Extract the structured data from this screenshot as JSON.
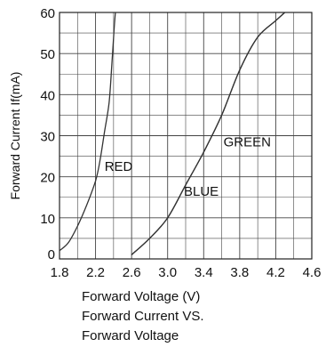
{
  "chart_data": {
    "type": "line",
    "title": "",
    "xlabel": "Forward Voltage (V)",
    "ylabel": "Forward Current If(mA)",
    "caption": [
      "Forward Current VS.",
      "Forward Voltage"
    ],
    "xlim": [
      1.8,
      4.6
    ],
    "ylim": [
      0,
      60
    ],
    "x_ticks": [
      1.8,
      2.2,
      2.6,
      3.0,
      3.4,
      3.8,
      4.2,
      4.6
    ],
    "x_tick_labels": [
      "1.8",
      "2.2",
      "2.6",
      "3.0",
      "3.4",
      "3.8",
      "4.2",
      "4.6"
    ],
    "y_ticks": [
      0,
      10,
      20,
      30,
      40,
      50,
      60
    ],
    "y_tick_labels": [
      "0",
      "10",
      "20",
      "30",
      "40",
      "50",
      "60"
    ],
    "grid": true,
    "line_color": "#333333",
    "series": [
      {
        "name": "RED",
        "x": [
          1.8,
          1.9,
          2.0,
          2.1,
          2.2,
          2.25,
          2.3,
          2.35,
          2.38,
          2.4,
          2.42
        ],
        "y": [
          2.0,
          4.0,
          8.0,
          13.0,
          19.0,
          24.0,
          31.0,
          38.0,
          47.0,
          54.0,
          60.0
        ]
      },
      {
        "name": "BLUE",
        "x": [
          2.6,
          2.8,
          3.0,
          3.2,
          3.4,
          3.6,
          3.8,
          4.0,
          4.2,
          4.3
        ],
        "y": [
          1.0,
          5.0,
          10.0,
          18.0,
          26.0,
          35.0,
          46.0,
          54.0,
          58.0,
          60.0
        ]
      },
      {
        "name": "GREEN",
        "x": [
          2.6,
          2.8,
          3.0,
          3.2,
          3.4,
          3.6,
          3.8,
          4.0,
          4.2,
          4.3
        ],
        "y": [
          1.0,
          5.0,
          10.0,
          18.0,
          26.0,
          35.0,
          46.0,
          54.0,
          58.0,
          60.0
        ]
      }
    ],
    "annotations": [
      {
        "text": "RED",
        "x": 2.3,
        "y": 22.5
      },
      {
        "text": "GREEN",
        "x": 3.62,
        "y": 28.5
      },
      {
        "text": "BLUE",
        "x": 3.18,
        "y": 16.5
      }
    ]
  }
}
